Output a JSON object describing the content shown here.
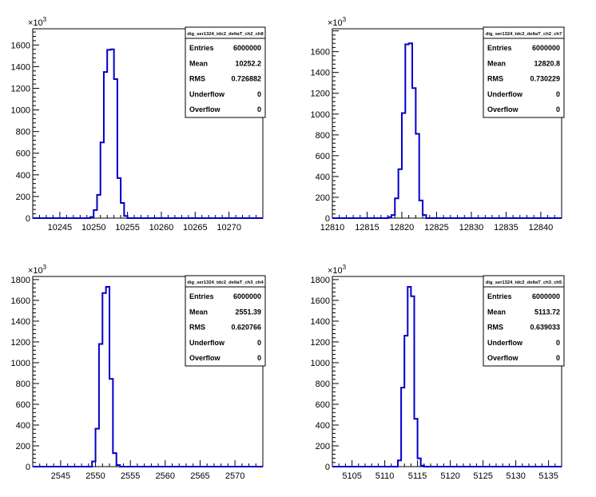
{
  "chart_data": [
    {
      "type": "histogram",
      "title": "",
      "exponent_label": "10",
      "exponent_power": "3",
      "xlim": [
        10241,
        10275
      ],
      "ylim": [
        0,
        1750
      ],
      "xticks": [
        10245,
        10250,
        10255,
        10260,
        10265,
        10270
      ],
      "yticks": [
        0,
        200,
        400,
        600,
        800,
        1000,
        1200,
        1400,
        1600
      ],
      "bins": {
        "x": [
          10249.5,
          10250,
          10250.5,
          10251,
          10251.5,
          10252,
          10252.5,
          10253,
          10253.5,
          10254,
          10254.5
        ],
        "values": [
          10,
          75,
          215,
          700,
          1350,
          1555,
          1560,
          1285,
          370,
          140,
          20
        ]
      },
      "stats": {
        "name": "dig_ser1324_tdc2_deltaT_ch2_ch8",
        "rows": [
          {
            "label": "Entries",
            "value": "6000000"
          },
          {
            "label": "Mean",
            "value": "10252.2"
          },
          {
            "label": "RMS",
            "value": "0.726882"
          },
          {
            "label": "Underflow",
            "value": "0"
          },
          {
            "label": "Overflow",
            "value": "0"
          }
        ]
      }
    },
    {
      "type": "histogram",
      "title": "",
      "exponent_label": "10",
      "exponent_power": "3",
      "xlim": [
        12810,
        12843
      ],
      "ylim": [
        0,
        1820
      ],
      "xticks": [
        12810,
        12815,
        12820,
        12825,
        12830,
        12835,
        12840
      ],
      "yticks": [
        0,
        200,
        400,
        600,
        800,
        1000,
        1200,
        1400,
        1600
      ],
      "bins": {
        "x": [
          12818,
          12818.5,
          12819,
          12819.5,
          12820,
          12820.5,
          12821,
          12821.5,
          12822,
          12822.5,
          12823
        ],
        "values": [
          10,
          30,
          190,
          470,
          1010,
          1670,
          1680,
          1250,
          810,
          170,
          30
        ]
      },
      "stats": {
        "name": "dig_ser1324_tdc2_deltaT_ch2_ch7",
        "rows": [
          {
            "label": "Entries",
            "value": "6000000"
          },
          {
            "label": "Mean",
            "value": "12820.8"
          },
          {
            "label": "RMS",
            "value": "0.730229"
          },
          {
            "label": "Underflow",
            "value": "0"
          },
          {
            "label": "Overflow",
            "value": "0"
          }
        ]
      }
    },
    {
      "type": "histogram",
      "title": "",
      "exponent_label": "10",
      "exponent_power": "3",
      "xlim": [
        2541,
        2574
      ],
      "ylim": [
        0,
        1830
      ],
      "xticks": [
        2545,
        2550,
        2555,
        2560,
        2565,
        2570
      ],
      "yticks": [
        0,
        200,
        400,
        600,
        800,
        1000,
        1200,
        1400,
        1600,
        1800
      ],
      "bins": {
        "x": [
          2549.5,
          2550,
          2550.5,
          2551,
          2551.5,
          2552,
          2552.5,
          2553
        ],
        "values": [
          50,
          365,
          1180,
          1670,
          1730,
          845,
          130,
          15
        ]
      },
      "stats": {
        "name": "dig_ser1324_tdc2_deltaT_ch3_ch4",
        "rows": [
          {
            "label": "Entries",
            "value": "6000000"
          },
          {
            "label": "Mean",
            "value": "2551.39"
          },
          {
            "label": "RMS",
            "value": "0.620766"
          },
          {
            "label": "Underflow",
            "value": "0"
          },
          {
            "label": "Overflow",
            "value": "0"
          }
        ]
      }
    },
    {
      "type": "histogram",
      "title": "",
      "exponent_label": "10",
      "exponent_power": "3",
      "xlim": [
        5102,
        5137
      ],
      "ylim": [
        0,
        1830
      ],
      "xticks": [
        5105,
        5110,
        5115,
        5120,
        5125,
        5130,
        5135
      ],
      "yticks": [
        0,
        200,
        400,
        600,
        800,
        1000,
        1200,
        1400,
        1600,
        1800
      ],
      "bins": {
        "x": [
          5112,
          5112.5,
          5113,
          5113.5,
          5114,
          5114.5,
          5115,
          5115.5
        ],
        "values": [
          60,
          760,
          1260,
          1730,
          1640,
          460,
          80,
          10
        ]
      },
      "stats": {
        "name": "dig_ser1324_tdc2_deltaT_ch3_ch5",
        "rows": [
          {
            "label": "Entries",
            "value": "6000000"
          },
          {
            "label": "Mean",
            "value": "5113.72"
          },
          {
            "label": "RMS",
            "value": "0.639033"
          },
          {
            "label": "Underflow",
            "value": "0"
          },
          {
            "label": "Overflow",
            "value": "0"
          }
        ]
      }
    }
  ],
  "colors": {
    "histogram_line": "#0000cc",
    "axis": "#000000",
    "background": "#ffffff"
  }
}
